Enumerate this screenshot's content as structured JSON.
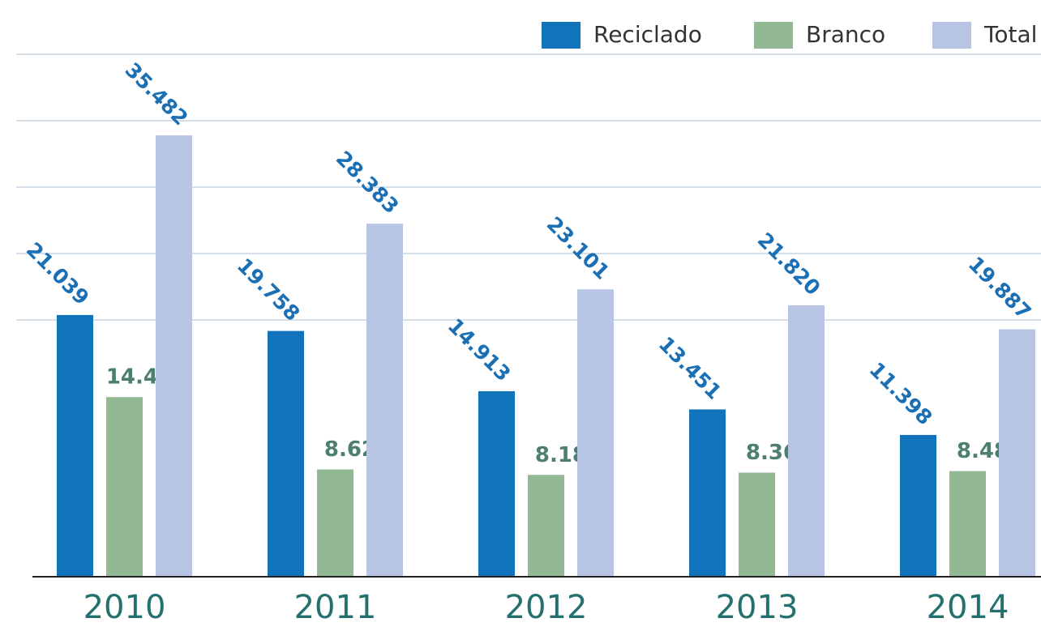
{
  "chart_data": {
    "type": "bar",
    "categories": [
      "2010",
      "2011",
      "2012",
      "2013",
      "2014"
    ],
    "series": [
      {
        "name": "Reciclado",
        "color": "#1273bd",
        "values": [
          21039,
          19758,
          14913,
          13451,
          11398
        ],
        "value_labels": [
          "21.039",
          "19.758",
          "14.913",
          "13.451",
          "11.398"
        ]
      },
      {
        "name": "Branco",
        "color": "#93b894",
        "values": [
          14443,
          8625,
          8188,
          8369,
          8489
        ],
        "value_labels": [
          "14.443",
          "8.625",
          "8.188",
          "8.369",
          "8.489"
        ]
      },
      {
        "name": "Total",
        "color": "#b8c4e4",
        "values": [
          35482,
          28383,
          23101,
          21820,
          19887
        ],
        "value_labels": [
          "35.482",
          "28.383",
          "23.101",
          "21.820",
          "19.887"
        ]
      }
    ],
    "ylim": [
      0,
      42000
    ],
    "legend": "top-right"
  }
}
